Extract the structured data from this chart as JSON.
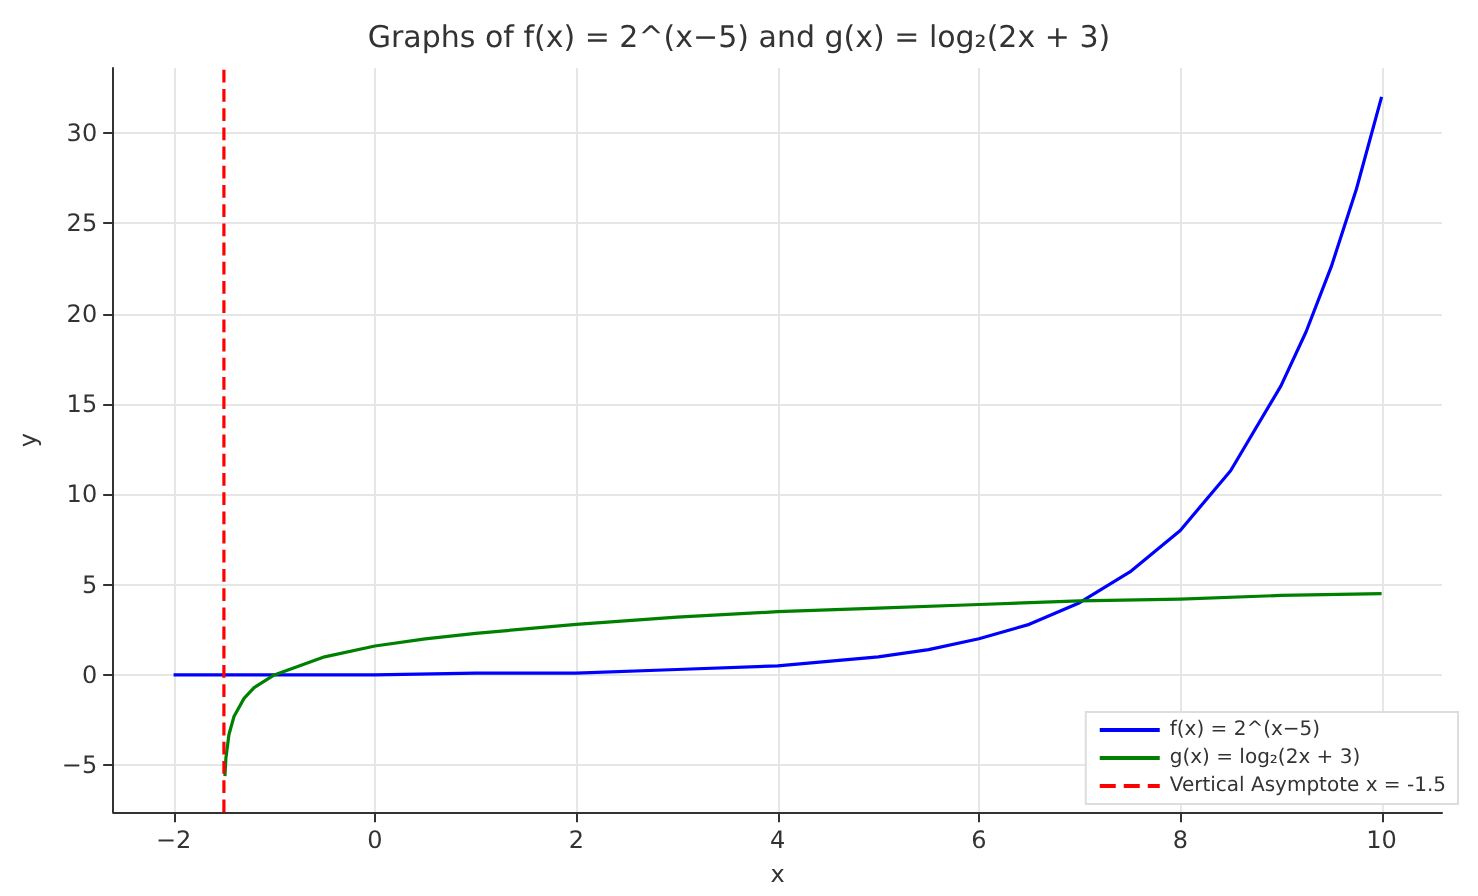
{
  "chart_data": {
    "type": "line",
    "title": "Graphs of f(x) = 2^(x−5) and g(x) = log₂(2x + 3)",
    "xlabel": "x",
    "ylabel": "y",
    "xlim": [
      -2.6,
      10.6
    ],
    "ylim": [
      -7.6,
      33.6
    ],
    "xticks": [
      -2,
      0,
      2,
      4,
      6,
      8,
      10
    ],
    "yticks": [
      -5,
      0,
      5,
      10,
      15,
      20,
      25,
      30
    ],
    "grid": true,
    "legend": "bottom right",
    "marker": "none",
    "line_style": "solid",
    "series": [
      {
        "name": "f(x) = 2^(x−5)",
        "color": "#0000ff",
        "x": [
          -2,
          -1,
          0,
          1,
          2,
          3,
          4,
          5,
          5.5,
          6,
          6.5,
          7,
          7.5,
          8,
          8.5,
          9,
          9.25,
          9.5,
          9.75,
          10
        ],
        "values": [
          0,
          0,
          0,
          0.1,
          0.1,
          0.3,
          0.5,
          1,
          1.4,
          2,
          2.8,
          4,
          5.7,
          8,
          11.3,
          16,
          19,
          22.6,
          26.9,
          32
        ]
      },
      {
        "name": "g(x) = log₂(2x + 3)",
        "color": "#008000",
        "x": [
          -1.49,
          -1.48,
          -1.45,
          -1.4,
          -1.3,
          -1.2,
          -1,
          -0.5,
          0,
          0.5,
          1,
          2,
          3,
          4,
          5,
          6,
          7,
          8,
          9,
          10
        ],
        "values": [
          -5.6,
          -4.6,
          -3.3,
          -2.3,
          -1.3,
          -0.7,
          0,
          1,
          1.6,
          2,
          2.3,
          2.8,
          3.2,
          3.5,
          3.7,
          3.9,
          4.1,
          4.2,
          4.4,
          4.5
        ]
      },
      {
        "name": "Vertical Asymptote x = -1.5",
        "color": "#ff0000",
        "line_style": "dashed",
        "x": [
          -1.5,
          -1.5
        ],
        "values": [
          -7.6,
          33.6
        ]
      }
    ]
  }
}
